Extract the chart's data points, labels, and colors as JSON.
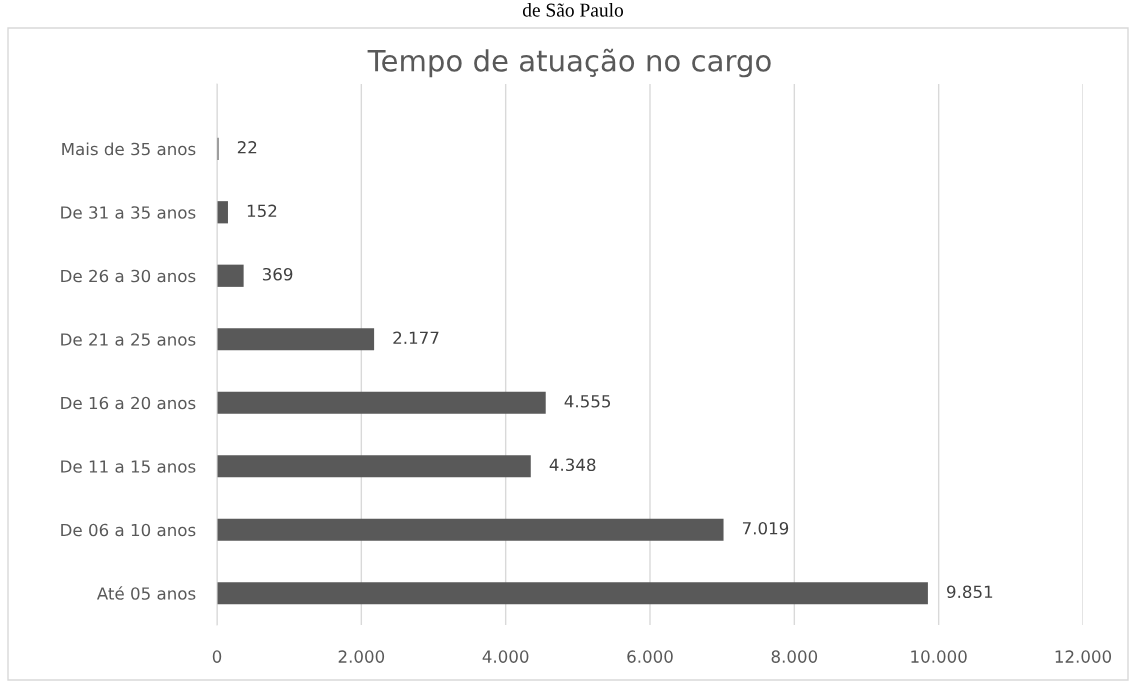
{
  "chart_data": {
    "type": "bar",
    "orientation": "horizontal",
    "title": "Tempo de atuação no cargo",
    "annotations": [
      "de São Paulo"
    ],
    "categories": [
      "Mais de 35 anos",
      "De 31 a 35 anos",
      "De 26 a 30 anos",
      "De 21 a 25 anos",
      "De 16 a 20 anos",
      "De 11 a 15 anos",
      "De 06 a 10 anos",
      "Até 05 anos"
    ],
    "values": [
      22,
      152,
      369,
      2177,
      4555,
      4348,
      7019,
      9851
    ],
    "value_labels": [
      "22",
      "152",
      "369",
      "2.177",
      "4.555",
      "4.348",
      "7.019",
      "9.851"
    ],
    "color": "#595959",
    "xlim": [
      0,
      12000
    ],
    "xticks": [
      0,
      {
        "value": 2000,
        "label": "2.000"
      },
      {
        "value": 4000,
        "label": "4.000"
      },
      {
        "value": 6000,
        "label": "6.000"
      },
      {
        "value": 8000,
        "label": "8.000"
      },
      {
        "value": 10000,
        "label": "10.000"
      },
      {
        "value": 12000,
        "label": "12.000"
      }
    ],
    "grid": "x"
  }
}
